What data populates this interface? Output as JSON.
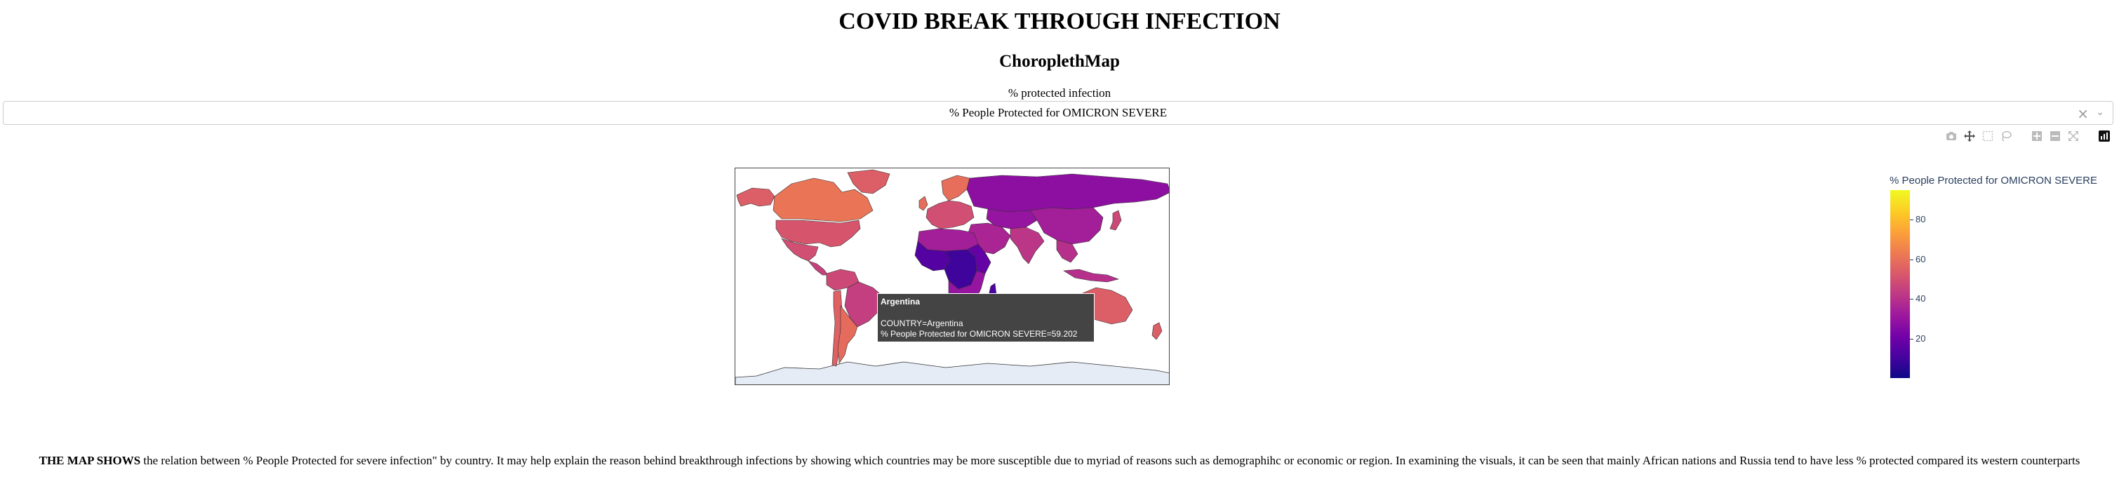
{
  "header": {
    "title": "COVID BREAK THROUGH INFECTION",
    "subtitle": "ChoroplethMap"
  },
  "dropdown": {
    "label": "% protected infection",
    "selected": "% People Protected for OMICRON SEVERE",
    "clear_glyph": "×",
    "arrow_glyph": "⌄"
  },
  "modebar": {
    "icons": [
      "camera-icon",
      "pan-icon",
      "box-select-icon",
      "lasso-select-icon",
      "zoom-in-icon",
      "zoom-out-icon",
      "autoscale-icon",
      "plotly-logo-icon"
    ]
  },
  "map": {
    "colorbar": {
      "title": "% People Protected for OMICRON SEVERE",
      "ticks": [
        "80",
        "60",
        "40",
        "20"
      ],
      "tick_values": [
        80,
        60,
        40,
        20
      ],
      "range": [
        0,
        95
      ],
      "colorscale": [
        "#0d0887",
        "#46039f",
        "#7201a8",
        "#9c179e",
        "#bd3786",
        "#d8576b",
        "#ed7953",
        "#fb9f3a",
        "#fdca26",
        "#f0f921"
      ]
    },
    "ocean_color": "#ffffff",
    "antarctica_color": "#e5ecf6",
    "regions": [
      {
        "id": "north-america",
        "value": 58
      },
      {
        "id": "alaska",
        "value": 55
      },
      {
        "id": "canada",
        "value": 62
      },
      {
        "id": "greenland",
        "value": 55
      },
      {
        "id": "usa",
        "value": 52
      },
      {
        "id": "mexico",
        "value": 50
      },
      {
        "id": "central-america",
        "value": 46
      },
      {
        "id": "south-america",
        "value": 48
      },
      {
        "id": "brazil",
        "value": 45
      },
      {
        "id": "argentina",
        "value": 59.202
      },
      {
        "id": "chile",
        "value": 56
      },
      {
        "id": "europe",
        "value": 50
      },
      {
        "id": "scandinavia",
        "value": 60
      },
      {
        "id": "russia",
        "value": 28
      },
      {
        "id": "middle-east",
        "value": 36
      },
      {
        "id": "north-africa",
        "value": 34
      },
      {
        "id": "west-africa",
        "value": 14
      },
      {
        "id": "central-africa",
        "value": 9
      },
      {
        "id": "east-africa",
        "value": 18
      },
      {
        "id": "south-africa",
        "value": 30
      },
      {
        "id": "madagascar",
        "value": 12
      },
      {
        "id": "central-asia",
        "value": 30
      },
      {
        "id": "india",
        "value": 42
      },
      {
        "id": "china",
        "value": 34
      },
      {
        "id": "southeast-asia",
        "value": 40
      },
      {
        "id": "japan",
        "value": 48
      },
      {
        "id": "indonesia",
        "value": 40
      },
      {
        "id": "australia",
        "value": 55
      },
      {
        "id": "new-zealand",
        "value": 55
      },
      {
        "id": "uk",
        "value": 60
      }
    ],
    "tooltip": {
      "title": "Argentina",
      "line1": "COUNTRY=Argentina",
      "line2": "% People Protected for OMICRON SEVERE=59.202"
    }
  },
  "description": {
    "lead": "THE MAP SHOWS",
    "body": " the relation between % People Protected for severe infection\" by country. It may help explain the reason behind breakthrough infections by showing which countries may be more susceptible due to myriad of reasons such as demographihc or economic or region. In examining the visuals, it can be seen that mainly African nations and Russia tend to have less % protected compared its western counterparts"
  }
}
